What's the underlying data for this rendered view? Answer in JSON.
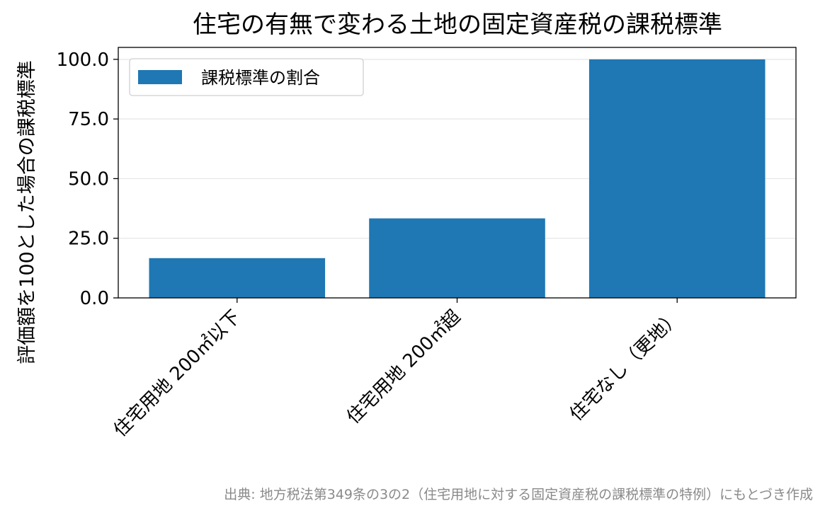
{
  "chart_data": {
    "type": "bar",
    "title": "住宅の有無で変わる土地の固定資産税の課税標準",
    "ylabel": "評価額を100とした場合の課税標準",
    "xlabel": "",
    "categories": [
      "住宅用地 200㎡以下",
      "住宅用地 200㎡超",
      "住宅なし（更地）"
    ],
    "series": [
      {
        "name": "課税標準の割合",
        "values": [
          16.67,
          33.33,
          100.0
        ]
      }
    ],
    "ylim": [
      0,
      105
    ],
    "yticks": [
      "0.0",
      "25.0",
      "50.0",
      "75.0",
      "100.0"
    ],
    "grid": "y",
    "legend": "top-left",
    "bar_color": "#1f77b4"
  },
  "source_note": "出典: 地方税法第349条の3の2（住宅用地に対する固定資産税の課税標準の特例）にもとづき作成"
}
